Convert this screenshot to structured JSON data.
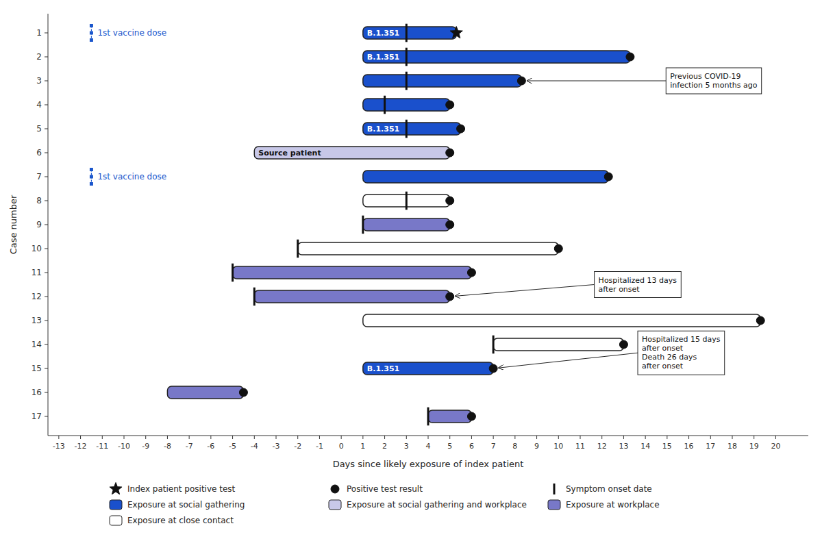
{
  "chart_data": {
    "type": "gantt",
    "orientation": "horizontal",
    "xlabel": "Days since likely exposure of index patient",
    "ylabel": "Case number",
    "xlim": [
      -13.5,
      21.5
    ],
    "xticks": [
      -13,
      -12,
      -11,
      -10,
      -9,
      -8,
      -7,
      -6,
      -5,
      -4,
      -3,
      -2,
      -1,
      0,
      1,
      2,
      3,
      4,
      5,
      6,
      7,
      8,
      9,
      10,
      11,
      12,
      13,
      14,
      15,
      16,
      17,
      18,
      19,
      20
    ],
    "grid": false,
    "legend": "bottom",
    "categories": [
      "1",
      "2",
      "3",
      "4",
      "5",
      "6",
      "7",
      "8",
      "9",
      "10",
      "11",
      "12",
      "13",
      "14",
      "15",
      "16",
      "17"
    ],
    "series": [
      {
        "name": "Exposure at social gathering",
        "color": "#1a50cc",
        "start": [
          1,
          1,
          1,
          1,
          1,
          null,
          1,
          null,
          null,
          null,
          null,
          null,
          null,
          null,
          1,
          null,
          null
        ],
        "values": [
          5.3,
          13.3,
          8.3,
          5,
          5.5,
          null,
          12.3,
          null,
          null,
          null,
          null,
          null,
          null,
          null,
          7,
          null,
          null
        ]
      },
      {
        "name": "Exposure at social gathering and workplace",
        "color": "#c8c8e8",
        "start": [
          null,
          null,
          null,
          null,
          null,
          -4,
          null,
          null,
          null,
          null,
          null,
          null,
          null,
          null,
          null,
          null,
          null
        ],
        "values": [
          null,
          null,
          null,
          null,
          null,
          5,
          null,
          null,
          null,
          null,
          null,
          null,
          null,
          null,
          null,
          null,
          null
        ]
      },
      {
        "name": "Exposure at workplace",
        "color": "#7878c8",
        "start": [
          null,
          null,
          null,
          null,
          null,
          null,
          null,
          null,
          1,
          null,
          -5,
          -4,
          null,
          null,
          null,
          -8,
          4
        ],
        "values": [
          null,
          null,
          null,
          null,
          null,
          null,
          null,
          null,
          5,
          null,
          6,
          5,
          null,
          null,
          null,
          -4.5,
          6
        ]
      },
      {
        "name": "Exposure at close contact",
        "color": "#ffffff",
        "start": [
          null,
          null,
          null,
          null,
          null,
          null,
          null,
          1,
          null,
          -2,
          null,
          null,
          1,
          7,
          null,
          null,
          null
        ],
        "values": [
          null,
          null,
          null,
          null,
          null,
          null,
          null,
          5,
          null,
          10,
          null,
          null,
          19.3,
          13,
          null,
          null,
          null
        ]
      }
    ],
    "bar_labels": [
      "B.1.351",
      "B.1.351",
      null,
      null,
      "B.1.351",
      "Source patient",
      null,
      null,
      null,
      null,
      null,
      null,
      null,
      null,
      "B.1.351",
      null,
      null
    ],
    "index_test_positive": {
      "name": "Index patient positive test",
      "marker": "star",
      "values": [
        5.3,
        null,
        null,
        null,
        null,
        null,
        null,
        null,
        null,
        null,
        null,
        null,
        null,
        null,
        null,
        null,
        null
      ]
    },
    "test_positive": {
      "name": "Positive test result",
      "marker": "circle",
      "values": [
        null,
        13.3,
        8.3,
        5,
        5.5,
        5,
        12.3,
        5,
        5,
        10,
        6,
        5,
        19.3,
        13,
        7,
        -4.5,
        6
      ]
    },
    "symptom_onset": {
      "name": "Symptom onset date",
      "values": [
        3,
        3,
        3,
        2,
        3,
        null,
        null,
        3,
        1,
        -2,
        -5,
        -4,
        null,
        7,
        null,
        null,
        4
      ]
    },
    "vaccine_doses": [
      {
        "case": "1",
        "x": -11.5,
        "label": "1st vaccine dose",
        "color": "#1a56cc"
      },
      {
        "case": "7",
        "x": -11.5,
        "label": "1st vaccine dose",
        "color": "#1a56cc"
      }
    ],
    "annotations": [
      {
        "text": "Previous COVID-19\ninfection 5 months ago",
        "x": 8.3,
        "case": "3"
      },
      {
        "text": "Hospitalized 13 days\nafter onset",
        "x": 5.0,
        "case": "12"
      },
      {
        "text": "Hospitalized 15 days\nafter onset\nDeath 26 days\nafter onset",
        "x": 7.0,
        "case": "15"
      }
    ]
  }
}
